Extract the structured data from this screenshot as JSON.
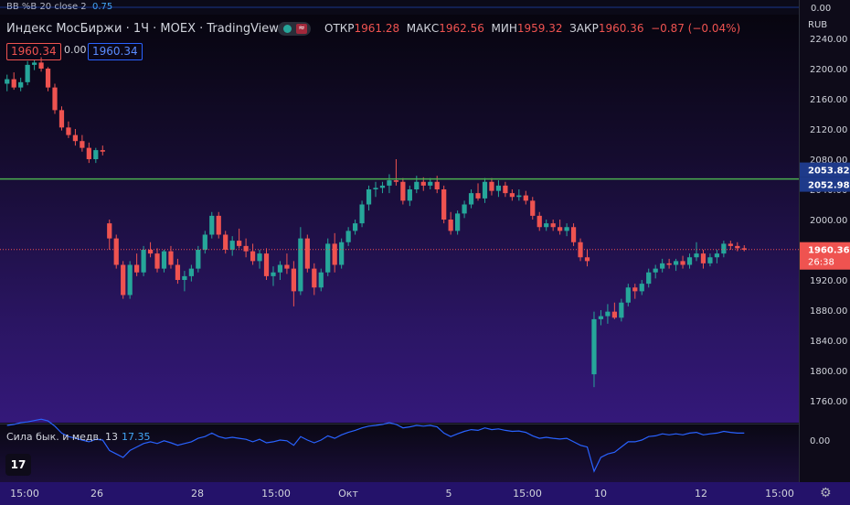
{
  "top_indicator": "BB %B 20 close 2",
  "top_indicator_value": "0.75",
  "top_axis_label": "0.00",
  "symbol_title": "Индекс МосБиржи · 1Ч · MOEX · TradingView",
  "ohlc": {
    "open_label": "ОТКР",
    "open": "1961.28",
    "high_label": "МАКС",
    "high": "1962.56",
    "low_label": "МИН",
    "low": "1959.32",
    "close_label": "ЗАКР",
    "close": "1960.36",
    "change": "−0.87 (−0.04%)"
  },
  "bid": "1960.34",
  "spread": "0.00",
  "ask": "1960.34",
  "currency": "RUB",
  "price_axis": [
    "2240.00",
    "2200.00",
    "2160.00",
    "2120.00",
    "2080.00",
    "2040.00",
    "2000.00",
    "1960.00",
    "1920.00",
    "1880.00",
    "1840.00",
    "1800.00",
    "1760.00"
  ],
  "hline_label_top": "2053.82",
  "hline_label_bottom": "2052.98",
  "last_price": "1960.36",
  "countdown": "26:38",
  "indicator_panel": {
    "name": "Сила бык. и медв. 13",
    "value": "17.35",
    "axis_label": "0.00"
  },
  "time_axis": [
    "15:00",
    "26",
    "28",
    "15:00",
    "Окт",
    "5",
    "15:00",
    "10",
    "12",
    "15:00"
  ],
  "colors": {
    "up": "#26a69a",
    "down": "#ef5350",
    "hline": "#4caf50",
    "last": "#ef5350",
    "indicator": "#2962ff"
  },
  "chart_data": {
    "type": "candlestick",
    "ylim": [
      1740,
      2250
    ],
    "horizontal_line": 2053.82,
    "candles": [
      [
        2180,
        2192,
        2170,
        2186
      ],
      [
        2186,
        2195,
        2172,
        2175
      ],
      [
        2175,
        2188,
        2170,
        2182
      ],
      [
        2182,
        2210,
        2178,
        2205
      ],
      [
        2205,
        2212,
        2198,
        2208
      ],
      [
        2208,
        2215,
        2196,
        2200
      ],
      [
        2200,
        2202,
        2170,
        2175
      ],
      [
        2175,
        2180,
        2140,
        2145
      ],
      [
        2145,
        2150,
        2118,
        2122
      ],
      [
        2122,
        2130,
        2108,
        2112
      ],
      [
        2112,
        2120,
        2098,
        2104
      ],
      [
        2104,
        2112,
        2090,
        2095
      ],
      [
        2095,
        2102,
        2075,
        2080
      ],
      [
        2080,
        2095,
        2075,
        2092
      ],
      [
        2092,
        2098,
        2085,
        2090
      ],
      [
        1995,
        2000,
        1960,
        1975
      ],
      [
        1975,
        1980,
        1935,
        1940
      ],
      [
        1940,
        1945,
        1895,
        1900
      ],
      [
        1900,
        1945,
        1895,
        1940
      ],
      [
        1940,
        1955,
        1925,
        1930
      ],
      [
        1930,
        1965,
        1925,
        1960
      ],
      [
        1960,
        1970,
        1950,
        1955
      ],
      [
        1955,
        1962,
        1930,
        1935
      ],
      [
        1935,
        1960,
        1930,
        1958
      ],
      [
        1958,
        1965,
        1935,
        1940
      ],
      [
        1940,
        1948,
        1915,
        1920
      ],
      [
        1920,
        1932,
        1905,
        1925
      ],
      [
        1925,
        1940,
        1918,
        1935
      ],
      [
        1935,
        1965,
        1930,
        1960
      ],
      [
        1960,
        1985,
        1955,
        1980
      ],
      [
        1980,
        2010,
        1975,
        2005
      ],
      [
        2005,
        2010,
        1975,
        1980
      ],
      [
        1980,
        1985,
        1955,
        1960
      ],
      [
        1960,
        1978,
        1952,
        1972
      ],
      [
        1972,
        1988,
        1962,
        1965
      ],
      [
        1965,
        1975,
        1950,
        1958
      ],
      [
        1958,
        1968,
        1940,
        1945
      ],
      [
        1945,
        1960,
        1935,
        1955
      ],
      [
        1955,
        1962,
        1920,
        1925
      ],
      [
        1925,
        1938,
        1912,
        1930
      ],
      [
        1930,
        1945,
        1920,
        1940
      ],
      [
        1940,
        1955,
        1928,
        1935
      ],
      [
        1935,
        1945,
        1885,
        1905
      ],
      [
        1905,
        1990,
        1900,
        1975
      ],
      [
        1975,
        1980,
        1930,
        1935
      ],
      [
        1935,
        1942,
        1900,
        1910
      ],
      [
        1910,
        1935,
        1905,
        1930
      ],
      [
        1930,
        1975,
        1925,
        1968
      ],
      [
        1968,
        1982,
        1930,
        1940
      ],
      [
        1940,
        1975,
        1935,
        1970
      ],
      [
        1970,
        1990,
        1965,
        1985
      ],
      [
        1985,
        2000,
        1980,
        1995
      ],
      [
        1995,
        2025,
        1990,
        2020
      ],
      [
        2020,
        2045,
        2012,
        2040
      ],
      [
        2040,
        2050,
        2030,
        2042
      ],
      [
        2042,
        2050,
        2035,
        2045
      ],
      [
        2045,
        2060,
        2035,
        2052
      ],
      [
        2052,
        2080,
        2045,
        2050
      ],
      [
        2050,
        2055,
        2020,
        2025
      ],
      [
        2025,
        2045,
        2018,
        2040
      ],
      [
        2040,
        2058,
        2035,
        2050
      ],
      [
        2050,
        2056,
        2038,
        2045
      ],
      [
        2045,
        2055,
        2040,
        2050
      ],
      [
        2050,
        2058,
        2035,
        2040
      ],
      [
        2040,
        2045,
        1995,
        2000
      ],
      [
        2000,
        2010,
        1980,
        1985
      ],
      [
        1985,
        2012,
        1980,
        2008
      ],
      [
        2008,
        2025,
        2002,
        2020
      ],
      [
        2020,
        2040,
        2015,
        2035
      ],
      [
        2035,
        2048,
        2025,
        2028
      ],
      [
        2028,
        2055,
        2022,
        2050
      ],
      [
        2050,
        2055,
        2032,
        2038
      ],
      [
        2038,
        2052,
        2030,
        2045
      ],
      [
        2045,
        2050,
        2030,
        2035
      ],
      [
        2035,
        2040,
        2025,
        2030
      ],
      [
        2030,
        2040,
        2025,
        2032
      ],
      [
        2032,
        2038,
        2020,
        2025
      ],
      [
        2025,
        2030,
        2000,
        2005
      ],
      [
        2005,
        2010,
        1985,
        1990
      ],
      [
        1990,
        2000,
        1985,
        1995
      ],
      [
        1995,
        2000,
        1985,
        1990
      ],
      [
        1990,
        2000,
        1980,
        1985
      ],
      [
        1985,
        1995,
        1978,
        1990
      ],
      [
        1990,
        1995,
        1965,
        1970
      ],
      [
        1970,
        1975,
        1945,
        1950
      ],
      [
        1950,
        1960,
        1938,
        1945
      ],
      [
        1795,
        1878,
        1778,
        1868
      ],
      [
        1868,
        1880,
        1860,
        1872
      ],
      [
        1872,
        1888,
        1862,
        1878
      ],
      [
        1878,
        1890,
        1868,
        1870
      ],
      [
        1870,
        1895,
        1865,
        1890
      ],
      [
        1890,
        1915,
        1885,
        1910
      ],
      [
        1910,
        1915,
        1895,
        1905
      ],
      [
        1905,
        1920,
        1900,
        1915
      ],
      [
        1915,
        1935,
        1910,
        1930
      ],
      [
        1930,
        1940,
        1922,
        1935
      ],
      [
        1935,
        1948,
        1930,
        1942
      ],
      [
        1942,
        1948,
        1935,
        1940
      ],
      [
        1940,
        1948,
        1932,
        1945
      ],
      [
        1945,
        1952,
        1935,
        1940
      ],
      [
        1940,
        1955,
        1935,
        1950
      ],
      [
        1950,
        1970,
        1945,
        1955
      ],
      [
        1955,
        1960,
        1935,
        1942
      ],
      [
        1942,
        1955,
        1938,
        1950
      ],
      [
        1950,
        1960,
        1942,
        1955
      ],
      [
        1955,
        1972,
        1950,
        1968
      ],
      [
        1968,
        1972,
        1960,
        1965
      ],
      [
        1965,
        1970,
        1958,
        1962
      ],
      [
        1962,
        1966,
        1958,
        1960
      ]
    ],
    "indicator_series": [
      0.42,
      0.45,
      0.5,
      0.52,
      0.56,
      0.6,
      0.55,
      0.4,
      0.2,
      0.1,
      0.05,
      0.0,
      -0.05,
      0.02,
      0.0,
      -0.3,
      -0.4,
      -0.5,
      -0.3,
      -0.2,
      -0.1,
      -0.05,
      -0.1,
      -0.02,
      -0.08,
      -0.15,
      -0.1,
      -0.05,
      0.05,
      0.1,
      0.2,
      0.1,
      0.05,
      0.08,
      0.05,
      0.02,
      -0.05,
      0.02,
      -0.08,
      -0.05,
      0.0,
      -0.02,
      -0.15,
      0.1,
      0.0,
      -0.08,
      0.0,
      0.12,
      0.05,
      0.15,
      0.22,
      0.28,
      0.35,
      0.4,
      0.42,
      0.45,
      0.5,
      0.45,
      0.35,
      0.38,
      0.42,
      0.4,
      0.42,
      0.38,
      0.2,
      0.1,
      0.18,
      0.25,
      0.3,
      0.28,
      0.35,
      0.3,
      0.32,
      0.28,
      0.25,
      0.26,
      0.22,
      0.12,
      0.05,
      0.08,
      0.05,
      0.03,
      0.05,
      -0.05,
      -0.15,
      -0.2,
      -0.9,
      -0.5,
      -0.4,
      -0.35,
      -0.2,
      -0.05,
      -0.05,
      0.0,
      0.1,
      0.12,
      0.18,
      0.15,
      0.18,
      0.15,
      0.2,
      0.22,
      0.15,
      0.18,
      0.2,
      0.25,
      0.22,
      0.2,
      0.2
    ]
  }
}
